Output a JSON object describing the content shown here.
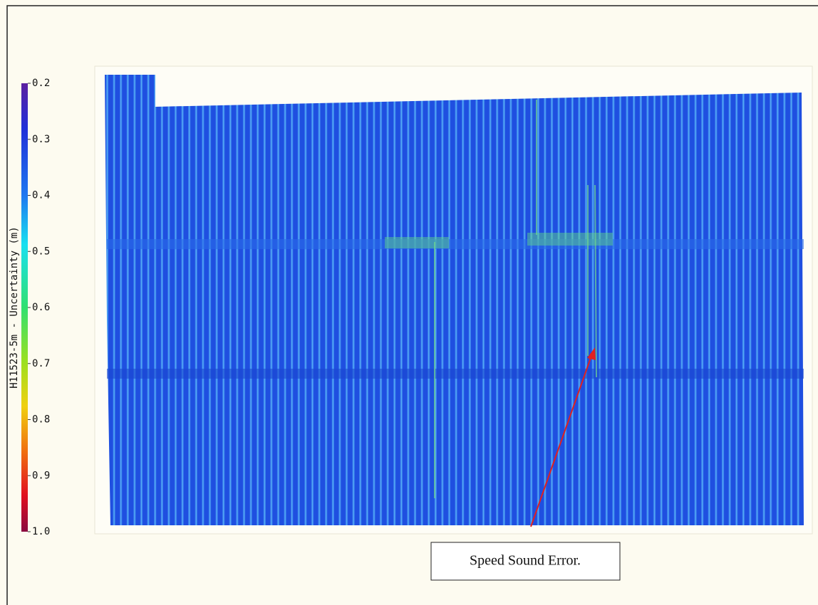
{
  "legend": {
    "title": "H11523-5m - Uncertainty (m)",
    "range": [
      0.2,
      1
    ],
    "ticks": [
      0.2,
      0.3,
      0.4,
      0.5,
      0.6,
      0.7,
      0.8,
      0.9,
      {
        "value": 1,
        "label": "1.0"
      }
    ]
  },
  "annotation": "Speed Sound Error."
}
